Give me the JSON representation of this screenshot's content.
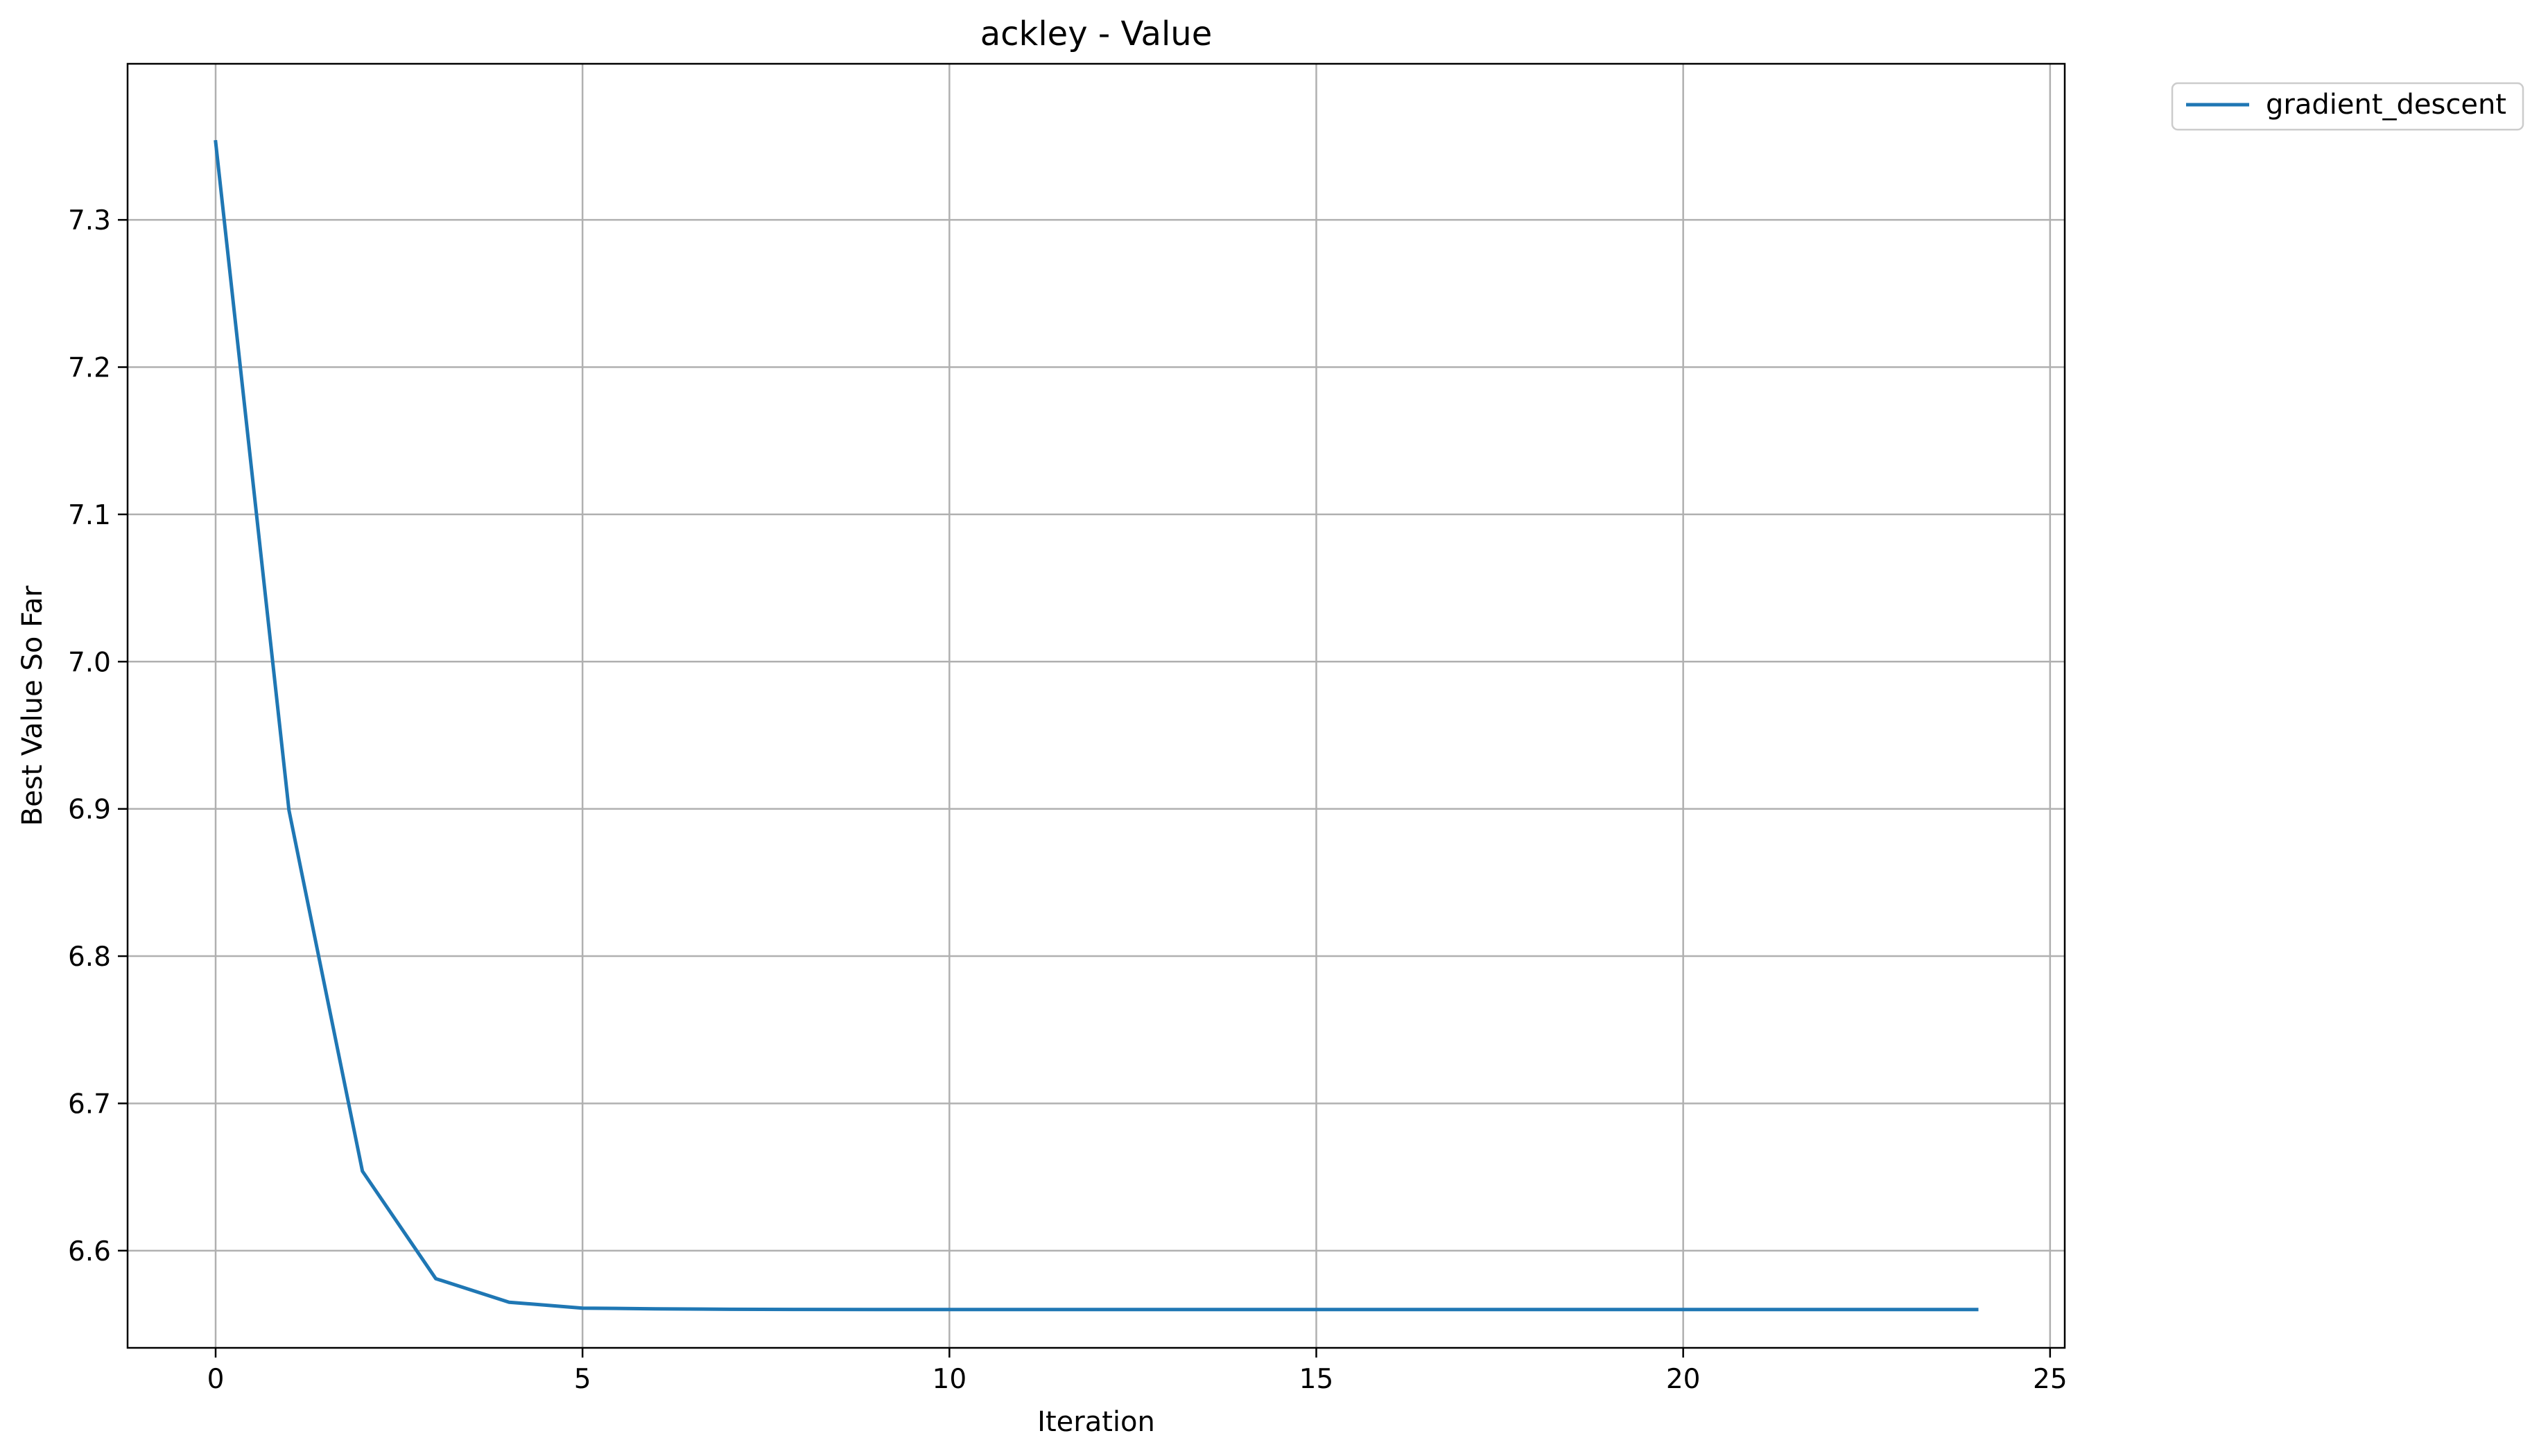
{
  "chart_data": {
    "type": "line",
    "title": "ackley - Value",
    "xlabel": "Iteration",
    "ylabel": "Best Value So Far",
    "xlim": [
      -1.2,
      25.2
    ],
    "ylim": [
      6.534,
      7.406
    ],
    "xticks": [
      0,
      5,
      10,
      15,
      20,
      25
    ],
    "yticks": [
      6.6,
      6.7,
      6.8,
      6.9,
      7.0,
      7.1,
      7.2,
      7.3
    ],
    "xtick_labels": [
      "0",
      "5",
      "10",
      "15",
      "20",
      "25"
    ],
    "ytick_labels": [
      "6.6",
      "6.7",
      "6.8",
      "6.9",
      "7.0",
      "7.1",
      "7.2",
      "7.3"
    ],
    "grid": true,
    "legend_position": "outside top-right",
    "series": [
      {
        "name": "gradient_descent",
        "color": "#1f77b4",
        "x": [
          0,
          1,
          2,
          3,
          4,
          5,
          6,
          7,
          8,
          9,
          10,
          11,
          12,
          13,
          14,
          15,
          16,
          17,
          18,
          19,
          20,
          21,
          22,
          23,
          24
        ],
        "y": [
          7.353,
          6.899,
          6.654,
          6.581,
          6.565,
          6.561,
          6.5605,
          6.5602,
          6.5601,
          6.56,
          6.56,
          6.56,
          6.56,
          6.56,
          6.56,
          6.56,
          6.56,
          6.56,
          6.56,
          6.56,
          6.56,
          6.56,
          6.56,
          6.56,
          6.56
        ]
      }
    ]
  }
}
